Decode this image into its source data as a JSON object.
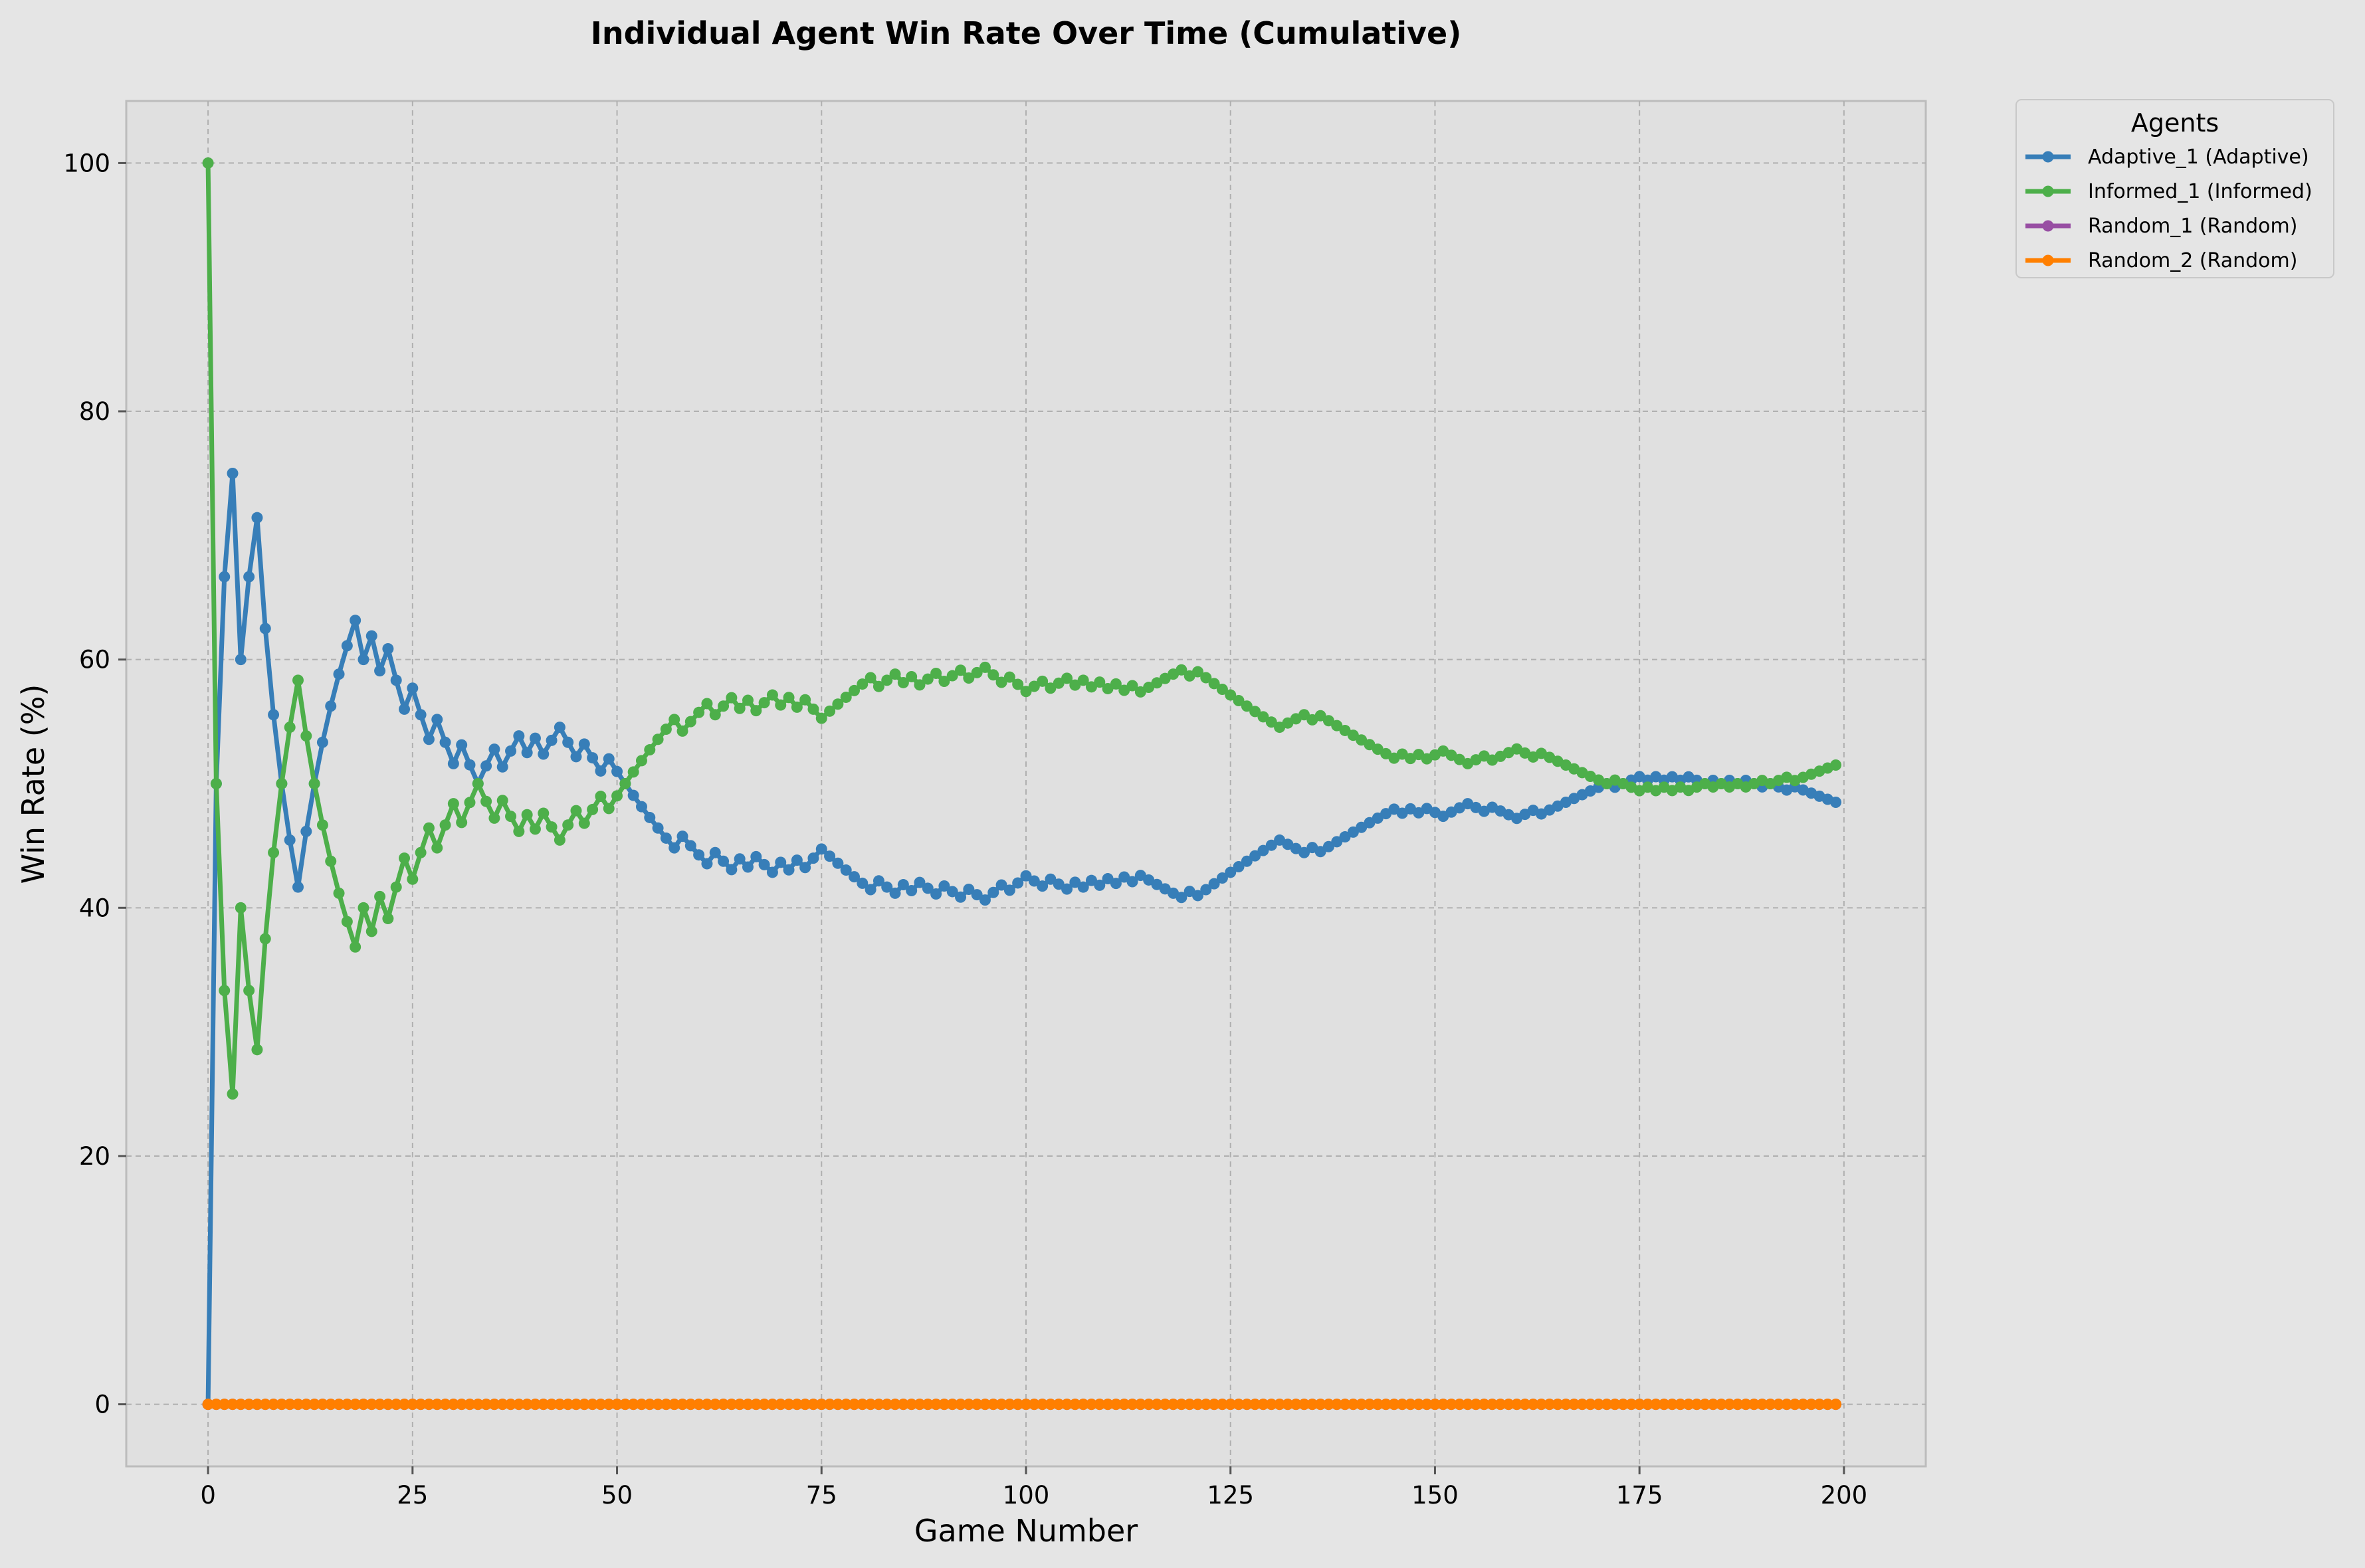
{
  "chart_data": {
    "type": "line",
    "title": "Individual Agent Win Rate Over Time (Cumulative)",
    "xlabel": "Game Number",
    "ylabel": "Win Rate (%)",
    "xlim": [
      -10,
      210
    ],
    "ylim": [
      -5,
      105
    ],
    "xticks": [
      0,
      25,
      50,
      75,
      100,
      125,
      150,
      175,
      200
    ],
    "yticks": [
      0,
      20,
      40,
      60,
      80,
      100
    ],
    "grid": true,
    "legend": {
      "title": "Agents",
      "position": "outside-top-right"
    },
    "colors": {
      "Adaptive_1 (Adaptive)": "#377eb8",
      "Informed_1 (Informed)": "#4daf4a",
      "Random_1 (Random)": "#984ea3",
      "Random_2 (Random)": "#ff7f00"
    },
    "adaptive_wins_per_game": "0111011000001111111010100100100100110110101100100100000000100010010100101011000000100101001001001101100100101010101000001011111111110001011111111101010011100100011011111111011101010100101010010010",
    "series": [
      {
        "name": "Adaptive_1 (Adaptive)",
        "x_start": 0,
        "x_end": 199
      },
      {
        "name": "Informed_1 (Informed)",
        "x_start": 0,
        "x_end": 199
      },
      {
        "name": "Random_1 (Random)",
        "x_start": 0,
        "x_end": 199,
        "constant_value": 0
      },
      {
        "name": "Random_2 (Random)",
        "x_start": 0,
        "x_end": 199,
        "constant_value": 0
      }
    ]
  }
}
